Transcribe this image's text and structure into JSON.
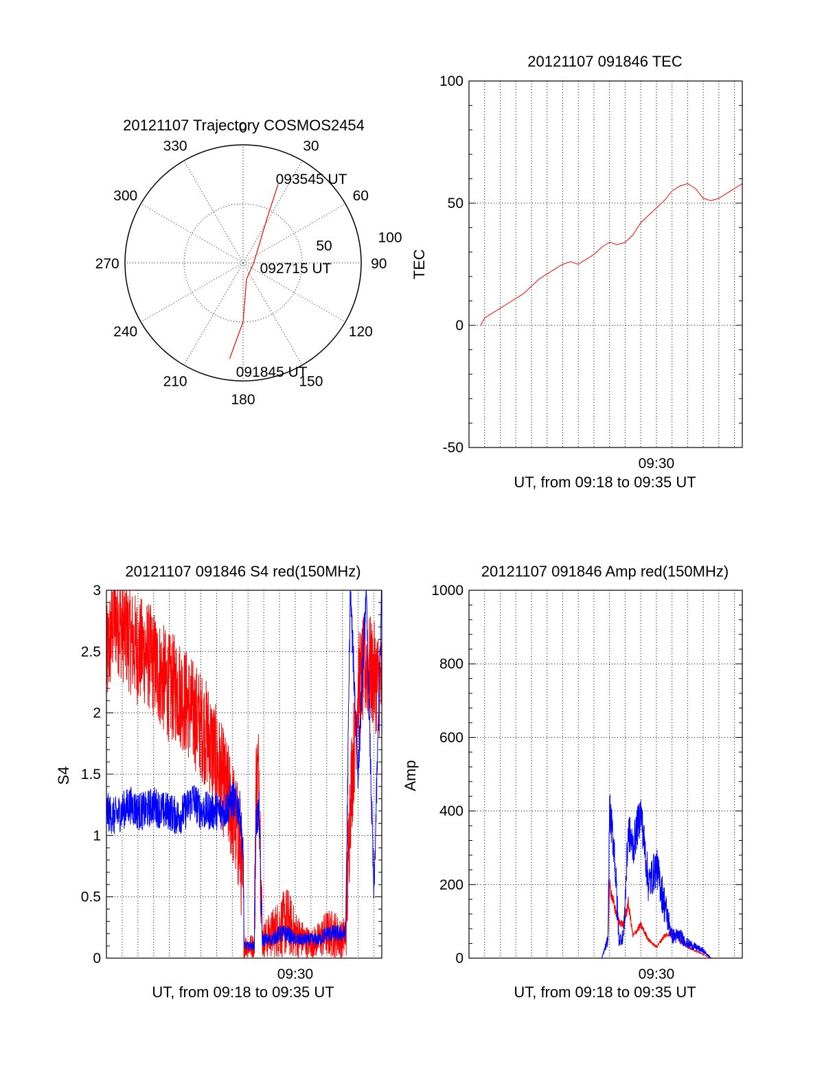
{
  "colors": {
    "red": "#ff0000",
    "blue": "#0000ff",
    "axis": "#000000",
    "grid": "#000000",
    "background": "#ffffff"
  },
  "chart_data": [
    {
      "id": "trajectory",
      "type": "polar",
      "title": "20121107 Trajectory COSMOS2454",
      "azimuth_labels": [
        "0",
        "30",
        "60",
        "90",
        "120",
        "150",
        "180",
        "210",
        "240",
        "270",
        "300",
        "330"
      ],
      "radial_rings": [
        50,
        100
      ],
      "radial_labels": [
        "50",
        "100"
      ],
      "grid": true,
      "track": {
        "color": "red",
        "points": [
          {
            "az": 188,
            "zen": 82
          },
          {
            "az": 180,
            "zen": 50
          },
          {
            "az": 168,
            "zen": 14
          },
          {
            "az": 90,
            "zen": 9
          },
          {
            "az": 28,
            "zen": 44
          },
          {
            "az": 24,
            "zen": 73
          }
        ]
      },
      "annotations": [
        {
          "text": "093545 UT",
          "az": 22,
          "zen": 77
        },
        {
          "text": "092715 UT",
          "az": 105,
          "zen": 16
        },
        {
          "text": "091845 UT",
          "az": 183,
          "zen": 92
        }
      ]
    },
    {
      "id": "tec",
      "type": "line",
      "title": "20121107 091846 TEC",
      "ylabel": "TEC",
      "xlabel": "UT, from 09:18 to 09:35 UT",
      "xlim": [
        0,
        17.5
      ],
      "ylim": [
        -50,
        100
      ],
      "yticks": [
        -50,
        0,
        50,
        100
      ],
      "ytick_labels": [
        "-50",
        "0",
        "50",
        "100"
      ],
      "xtick_labels": [
        {
          "x": 12,
          "label": "09:30"
        }
      ],
      "grid": true,
      "series": [
        {
          "color": "red",
          "x": [
            0.75,
            1,
            1.5,
            2,
            2.5,
            3,
            3.5,
            4,
            4.5,
            5,
            5.5,
            6,
            6.5,
            7,
            7.5,
            8,
            8.5,
            9,
            9.5,
            10,
            10.5,
            11,
            11.5,
            12,
            12.5,
            13,
            13.5,
            14,
            14.5,
            15,
            15.5,
            16,
            16.5,
            17,
            17.5
          ],
          "y": [
            0,
            3,
            5,
            7,
            9,
            11,
            13,
            16,
            19,
            21,
            23,
            25,
            26,
            25,
            27,
            29,
            32,
            34,
            33,
            34,
            37,
            42,
            45,
            48,
            51,
            55,
            57,
            58,
            56,
            52,
            51,
            52,
            54,
            56,
            58
          ]
        }
      ]
    },
    {
      "id": "s4",
      "type": "line",
      "title": "20121107 091846 S4 red(150MHz)",
      "ylabel": "S4",
      "xlabel": "UT, from 09:18 to 09:35 UT",
      "xlim": [
        0,
        17.5
      ],
      "ylim": [
        0,
        3
      ],
      "yticks": [
        0,
        0.5,
        1,
        1.5,
        2,
        2.5,
        3
      ],
      "ytick_labels": [
        "0",
        "0.5",
        "1",
        "1.5",
        "2",
        "2.5",
        "3"
      ],
      "xtick_labels": [
        {
          "x": 12,
          "label": "09:30"
        }
      ],
      "grid": true,
      "series": [
        {
          "color": "red",
          "noise": 0.45,
          "x": [
            0,
            0.5,
            1,
            1.5,
            2,
            2.5,
            3,
            3.5,
            4,
            4.5,
            5,
            5.5,
            6,
            6.5,
            7,
            7.5,
            8,
            8.5,
            8.7,
            8.75,
            9,
            9.4,
            9.5,
            9.7,
            9.9,
            10,
            10.5,
            11,
            11.5,
            12,
            12.5,
            13,
            13.5,
            14,
            14.5,
            15,
            15.2,
            15.5,
            16,
            16.5,
            17,
            17.5
          ],
          "y": [
            2.4,
            2.8,
            2.7,
            2.6,
            2.5,
            2.5,
            2.4,
            2.3,
            2.2,
            2.2,
            2.1,
            2.0,
            1.9,
            1.8,
            1.6,
            1.4,
            1.2,
            0.9,
            0.5,
            0.1,
            0.1,
            0.1,
            1.4,
            1.5,
            0.15,
            0.15,
            0.2,
            0.25,
            0.3,
            0.2,
            0.15,
            0.12,
            0.15,
            0.2,
            0.2,
            0.15,
            0.2,
            1.3,
            2.2,
            2.4,
            2.3,
            2.2
          ]
        },
        {
          "color": "blue",
          "noise": 0.16,
          "x": [
            0,
            0.5,
            1,
            1.5,
            2,
            2.5,
            3,
            3.5,
            4,
            4.5,
            5,
            5.5,
            6,
            6.5,
            7,
            7.5,
            8,
            8.5,
            8.7,
            8.75,
            9,
            9.4,
            9.5,
            9.7,
            9.9,
            10,
            10.5,
            11,
            11.5,
            12,
            12.5,
            13,
            13.5,
            14,
            14.5,
            15,
            15.2,
            15.5,
            16,
            16.5,
            17,
            17.5
          ],
          "y": [
            1.2,
            1.15,
            1.2,
            1.25,
            1.2,
            1.2,
            1.25,
            1.2,
            1.2,
            1.15,
            1.2,
            1.3,
            1.2,
            1.2,
            1.2,
            1.2,
            1.3,
            1.2,
            0.8,
            0.1,
            0.1,
            0.1,
            1.1,
            1.2,
            0.15,
            0.15,
            0.15,
            0.2,
            0.2,
            0.15,
            0.15,
            0.15,
            0.15,
            0.2,
            0.2,
            0.2,
            0.2,
            3.0,
            1.5,
            3.0,
            0.5,
            3.0
          ]
        }
      ]
    },
    {
      "id": "amp",
      "type": "line",
      "title": "20121107 091846 Amp red(150MHz)",
      "ylabel": "Amp",
      "xlabel": "UT, from 09:18 to 09:35 UT",
      "xlim": [
        0,
        17.5
      ],
      "ylim": [
        0,
        1000
      ],
      "yticks": [
        0,
        200,
        400,
        600,
        800,
        1000
      ],
      "ytick_labels": [
        "0",
        "200",
        "400",
        "600",
        "800",
        "1000"
      ],
      "xtick_labels": [
        {
          "x": 12,
          "label": "09:30"
        }
      ],
      "grid": true,
      "series": [
        {
          "color": "red",
          "noise": 18,
          "x": [
            0.75,
            5,
            8.5,
            8.9,
            9,
            9.3,
            9.6,
            9.9,
            10.2,
            10.5,
            11,
            11.5,
            12,
            12.5,
            13,
            13.5,
            14,
            14.5,
            15,
            15.5,
            16,
            17.5
          ],
          "y": [
            0,
            0,
            0,
            50,
            200,
            140,
            100,
            90,
            150,
            60,
            90,
            50,
            30,
            60,
            70,
            50,
            30,
            20,
            10,
            0,
            0,
            0
          ]
        },
        {
          "color": "blue",
          "noise": 55,
          "x": [
            0.75,
            5,
            8.5,
            8.9,
            9,
            9.3,
            9.6,
            9.9,
            10.2,
            10.5,
            11,
            11.5,
            12,
            12.5,
            13,
            13.5,
            14,
            14.5,
            15,
            15.5,
            16,
            17.5
          ],
          "y": [
            0,
            0,
            0,
            50,
            400,
            300,
            50,
            60,
            350,
            300,
            400,
            200,
            250,
            150,
            60,
            60,
            40,
            30,
            20,
            0,
            0,
            0
          ]
        }
      ]
    }
  ]
}
